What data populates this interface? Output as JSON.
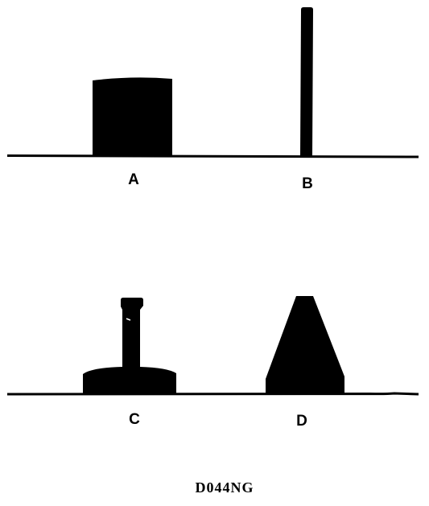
{
  "diagram": {
    "labels": {
      "a": "A",
      "b": "B",
      "c": "C",
      "d": "D"
    },
    "figure_code": "D044NG"
  },
  "colors": {
    "ink": "#000000",
    "background": "#ffffff"
  }
}
